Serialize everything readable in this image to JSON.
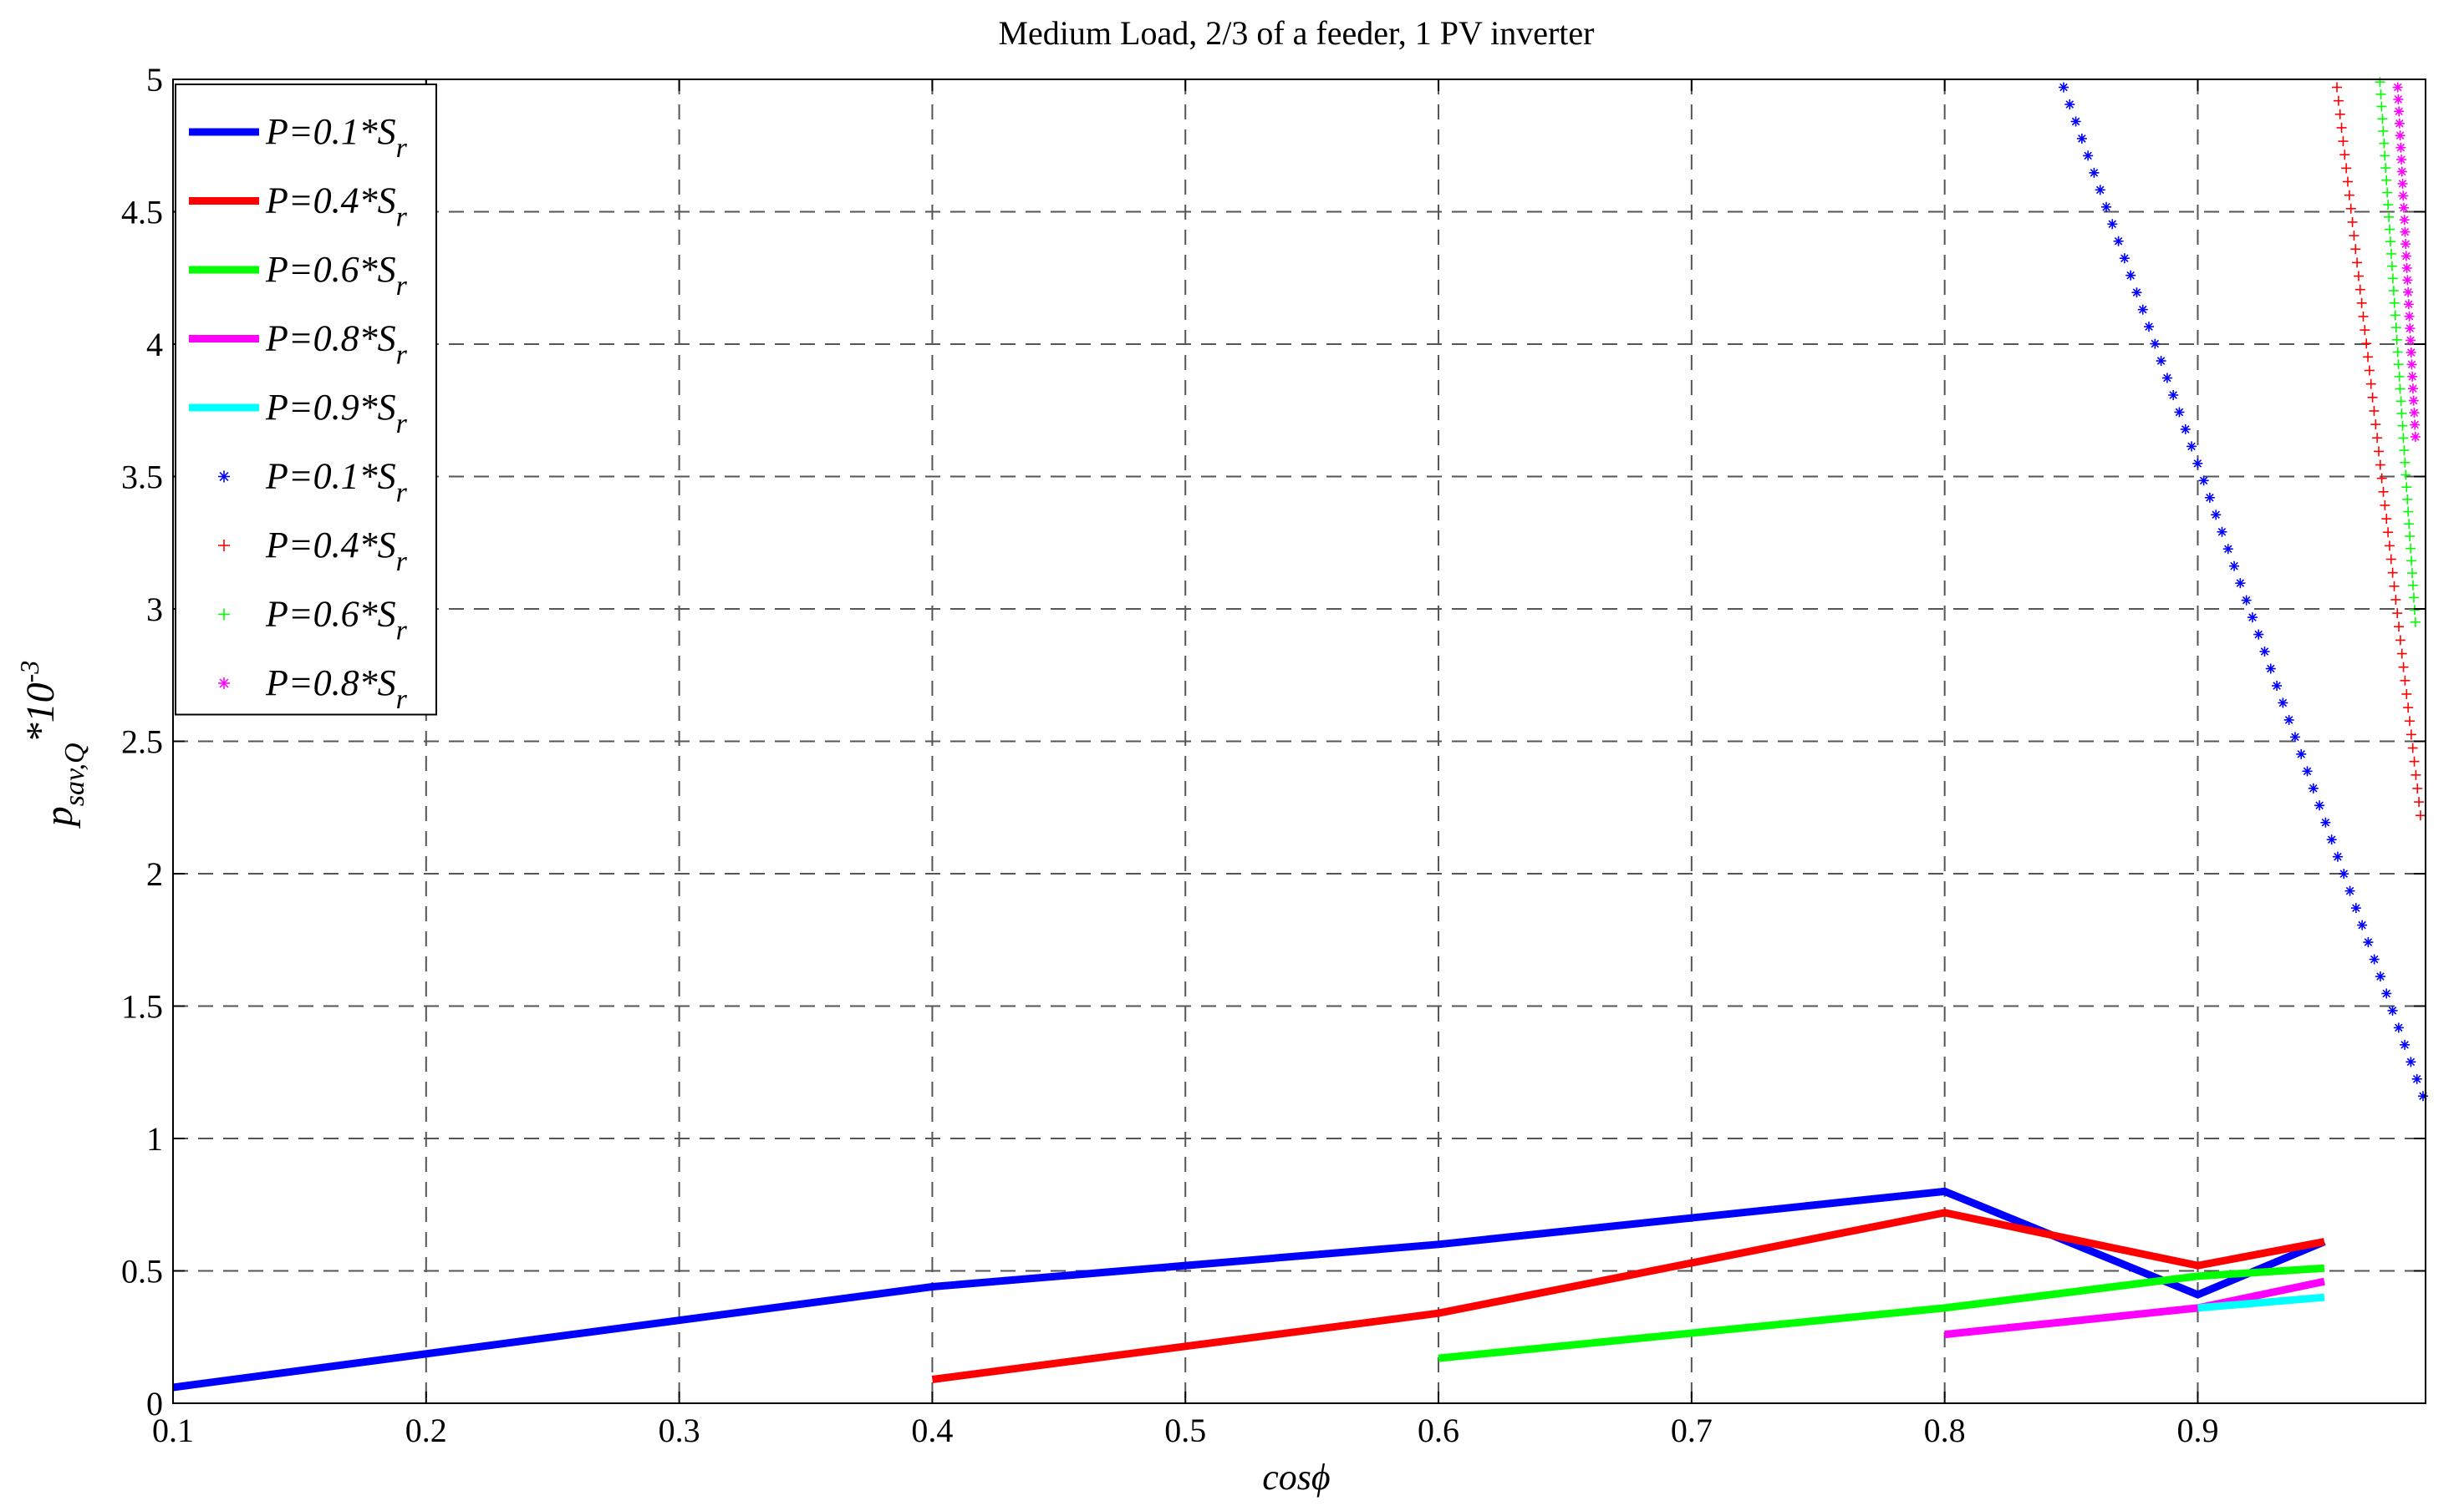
{
  "chart_data": {
    "type": "line",
    "title": "Medium Load, 2/3 of a feeder, 1 PV inverter",
    "xlabel": "cosϕ",
    "ylabel": {
      "base": "p",
      "sub": "sav,Q",
      "suffix": "*10",
      "exp": "-3"
    },
    "xlim": [
      0.1,
      0.99
    ],
    "ylim": [
      0,
      5
    ],
    "xticks": [
      0.1,
      0.2,
      0.3,
      0.4,
      0.5,
      0.6,
      0.7,
      0.8,
      0.9
    ],
    "xtick_labels": [
      "0.1",
      "0.2",
      "0.3",
      "0.4",
      "0.5",
      "0.6",
      "0.7",
      "0.8",
      "0.9"
    ],
    "yticks": [
      0,
      0.5,
      1,
      1.5,
      2,
      2.5,
      3,
      3.5,
      4,
      4.5,
      5
    ],
    "ytick_labels": [
      "0",
      "0.5",
      "1",
      "1.5",
      "2",
      "2.5",
      "3",
      "3.5",
      "4",
      "4.5",
      "5"
    ],
    "grid": true,
    "legend_position": "top-left",
    "series": [
      {
        "name": "P=0.1*Sr",
        "label_main": "P=0.1*S",
        "label_sub": "r",
        "style": "line",
        "color": "#0000ff",
        "x": [
          0.1,
          0.4,
          0.6,
          0.8,
          0.9,
          0.95
        ],
        "y": [
          0.06,
          0.44,
          0.6,
          0.8,
          0.41,
          0.61
        ]
      },
      {
        "name": "P=0.4*Sr",
        "label_main": "P=0.4*S",
        "label_sub": "r",
        "style": "line",
        "color": "#ff0000",
        "x": [
          0.4,
          0.6,
          0.8,
          0.9,
          0.95
        ],
        "y": [
          0.09,
          0.34,
          0.72,
          0.52,
          0.61
        ]
      },
      {
        "name": "P=0.6*Sr",
        "label_main": "P=0.6*S",
        "label_sub": "r",
        "style": "line",
        "color": "#00ff00",
        "x": [
          0.6,
          0.8,
          0.9,
          0.95
        ],
        "y": [
          0.17,
          0.36,
          0.48,
          0.51
        ]
      },
      {
        "name": "P=0.8*Sr",
        "label_main": "P=0.8*S",
        "label_sub": "r",
        "style": "line",
        "color": "#ff00ff",
        "x": [
          0.8,
          0.9,
          0.95
        ],
        "y": [
          0.26,
          0.36,
          0.46
        ]
      },
      {
        "name": "P=0.9*Sr",
        "label_main": "P=0.9*S",
        "label_sub": "r",
        "style": "line",
        "color": "#00ffff",
        "x": [
          0.9,
          0.95
        ],
        "y": [
          0.36,
          0.4
        ]
      },
      {
        "name": "P=0.1*Sr",
        "label_main": "P=0.1*S",
        "label_sub": "r",
        "style": "marker",
        "marker": "*",
        "color": "#0000ff",
        "x_range": [
          0.847,
          0.989
        ],
        "y_range": [
          4.97,
          1.16
        ],
        "points": 60
      },
      {
        "name": "P=0.4*Sr",
        "label_main": "P=0.4*S",
        "label_sub": "r",
        "style": "marker",
        "marker": "+",
        "color": "#ff0000",
        "x_range": [
          0.955,
          0.988
        ],
        "y_range": [
          4.97,
          2.22
        ],
        "points": 55
      },
      {
        "name": "P=0.6*Sr",
        "label_main": "P=0.6*S",
        "label_sub": "r",
        "style": "marker",
        "marker": "+",
        "color": "#00ff00",
        "x_range": [
          0.972,
          0.986
        ],
        "y_range": [
          4.99,
          2.95
        ],
        "points": 45
      },
      {
        "name": "P=0.8*Sr",
        "label_main": "P=0.8*S",
        "label_sub": "r",
        "style": "marker",
        "marker": "*",
        "color": "#ff00ff",
        "x_range": [
          0.979,
          0.986
        ],
        "y_range": [
          4.97,
          3.65
        ],
        "points": 30
      }
    ]
  }
}
